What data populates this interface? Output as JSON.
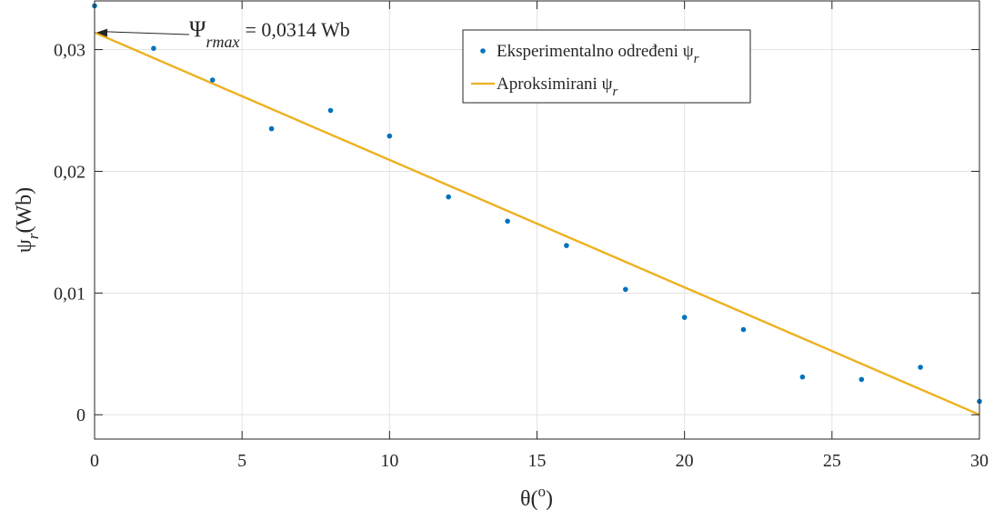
{
  "chart_data": {
    "type": "scatter",
    "xlabel": "θ(°)",
    "ylabel": "ψr(Wb)",
    "xlim": [
      0,
      30
    ],
    "ylim": [
      -0.002,
      0.034
    ],
    "xticks": [
      0,
      5,
      10,
      15,
      20,
      25,
      30
    ],
    "xtick_labels": [
      "0",
      "5",
      "10",
      "15",
      "20",
      "25",
      "30"
    ],
    "yticks": [
      0,
      0.01,
      0.02,
      0.03
    ],
    "ytick_labels": [
      "0",
      "0,01",
      "0,02",
      "0,03"
    ],
    "grid": true,
    "legend_position": "top-right",
    "series": [
      {
        "name": "Eksperimentalno određeni ψr",
        "kind": "scatter",
        "color": "#0072BD",
        "x": [
          0,
          2,
          4,
          6,
          8,
          10,
          12,
          14,
          16,
          18,
          20,
          22,
          24,
          26,
          28,
          30
        ],
        "y": [
          0.0336,
          0.0301,
          0.0275,
          0.0235,
          0.025,
          0.0229,
          0.0179,
          0.0159,
          0.0139,
          0.0103,
          0.008,
          0.007,
          0.0031,
          0.0029,
          0.0039,
          0.0011
        ]
      },
      {
        "name": "Aproksimirani ψr",
        "kind": "line",
        "color": "#EDB120",
        "x": [
          0,
          30
        ],
        "y": [
          0.0314,
          0.0
        ]
      }
    ],
    "annotation": {
      "symbol": "Ψ",
      "subscript": "rmax",
      "text": "= 0,0314 Wb",
      "target_x": 0,
      "target_y": 0.0314
    }
  }
}
